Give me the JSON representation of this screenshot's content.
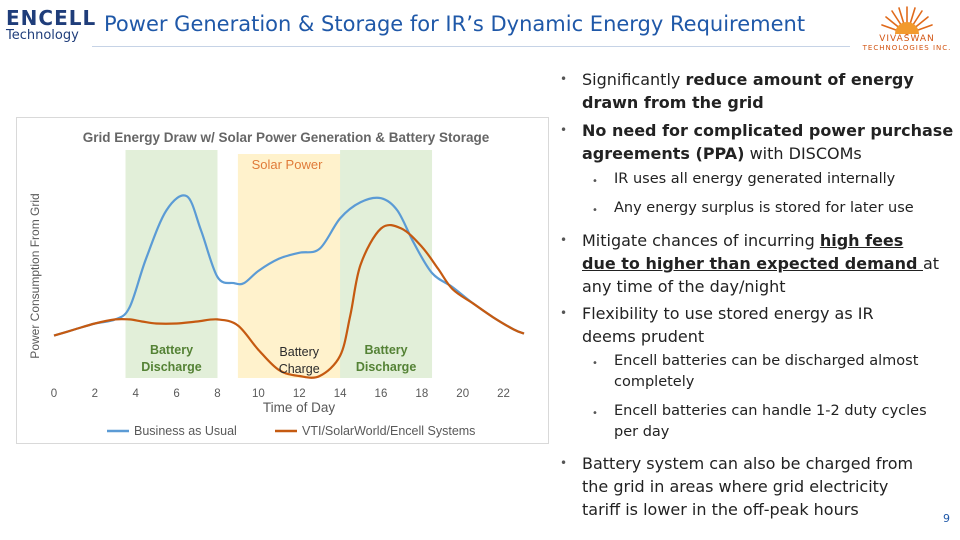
{
  "header": {
    "logo_left_line1": "ENCELL",
    "logo_left_line2": "Technology",
    "title": "Power Generation & Storage for IR’s Dynamic Energy Requirement",
    "logo_right_line1": "VIVASWAN",
    "logo_right_line2": "TECHNOLOGIES INC."
  },
  "colors": {
    "title_blue": "#1f58a8",
    "business_as_usual": "#5b9bd5",
    "vti_solarworld": "#c55a11",
    "discharge_band": "#e2efd9",
    "charge_band": "#fff2cc",
    "solar_label": "#e07b39",
    "battery_label": "#548235"
  },
  "chart_data": {
    "type": "line",
    "title": "Grid Energy Draw w/ Solar Power Generation & Battery Storage",
    "xlabel": "Time of Day",
    "ylabel": "Power Consumption From Grid",
    "x_ticks": [
      "0",
      "2",
      "4",
      "6",
      "8",
      "10",
      "12",
      "14",
      "16",
      "18",
      "20",
      "22"
    ],
    "xlim": [
      0,
      23
    ],
    "ylim": [
      0,
      10
    ],
    "grid": false,
    "legend_position": "bottom",
    "regions": [
      {
        "label": "Battery\nDischarge",
        "x_start": 3.5,
        "x_end": 8,
        "color": "#e2efd9"
      },
      {
        "label": "Solar  Power",
        "x_start": 9,
        "x_end": 15,
        "color": "#fff2cc"
      },
      {
        "label": "Battery\nCharge",
        "x_start": 10,
        "x_end": 14,
        "color": "#fff2cc"
      },
      {
        "label": "Battery\nDischarge",
        "x_start": 14,
        "x_end": 18.5,
        "color": "#e2efd9"
      }
    ],
    "series": [
      {
        "name": "Business as Usual",
        "color": "#5b9bd5",
        "x": [
          0,
          1,
          2,
          3,
          3.7,
          4.5,
          5.5,
          6.5,
          7.2,
          8,
          8.8,
          9.3,
          10,
          11,
          12,
          13,
          14,
          15,
          16,
          16.8,
          17.6,
          18.5,
          19.5,
          20.5,
          21.5,
          22.5,
          23
        ],
        "values": [
          2.0,
          2.3,
          2.6,
          2.8,
          3.4,
          5.8,
          8.2,
          8.9,
          7.2,
          4.9,
          4.6,
          4.6,
          5.2,
          5.8,
          6.1,
          6.3,
          7.8,
          8.6,
          8.8,
          8.2,
          6.6,
          5.1,
          4.4,
          3.6,
          2.9,
          2.3,
          2.1
        ]
      },
      {
        "name": "VTI/SolarWorld/Encell Systems",
        "color": "#c55a11",
        "x": [
          0,
          1,
          2,
          3,
          3.7,
          4.3,
          5,
          6,
          7,
          8,
          9,
          10,
          11,
          12,
          13,
          14,
          14.5,
          15,
          16,
          17,
          18,
          18.8,
          19.5,
          20.5,
          21.5,
          22.5,
          23
        ],
        "values": [
          2.0,
          2.3,
          2.6,
          2.8,
          2.8,
          2.7,
          2.6,
          2.6,
          2.7,
          2.8,
          2.5,
          1.3,
          0.3,
          0.0,
          0.0,
          1.0,
          3.0,
          5.5,
          7.3,
          7.3,
          6.4,
          5.3,
          4.3,
          3.6,
          2.9,
          2.3,
          2.1
        ]
      }
    ]
  },
  "bullets": {
    "b1_plain1": "Significantly ",
    "b1_bold": "reduce amount of energy",
    "b1_line2": "drawn from the grid",
    "b2_line1": "No need for complicated power purchase",
    "b2_bold2": "agreements (PPA)",
    "b2_plain2": " with DISCOMs",
    "s1": "IR uses all energy generated internally",
    "s2": "Any energy surplus is stored for later use",
    "b3_plain1": "Mitigate chances of incurring ",
    "b3_bu1": "high fees",
    "b3_bu2": "due to higher than expected demand ",
    "b3_plain2": "at",
    "b3_line3": "any time of the day/night",
    "b4_line1": "Flexibility to use stored energy as IR",
    "b4_line2": "deems prudent",
    "s3_line1": "Encell batteries can be discharged almost",
    "s3_line2": "completely",
    "s4_line1": "Encell batteries can handle 1-2 duty cycles",
    "s4_line2": "per day",
    "b5_line1": "Battery system can also be charged from",
    "b5_line2": "the grid in areas where grid electricity",
    "b5_line3": "tariff is lower in the off-peak hours"
  },
  "footer": {
    "page_number": "9"
  }
}
